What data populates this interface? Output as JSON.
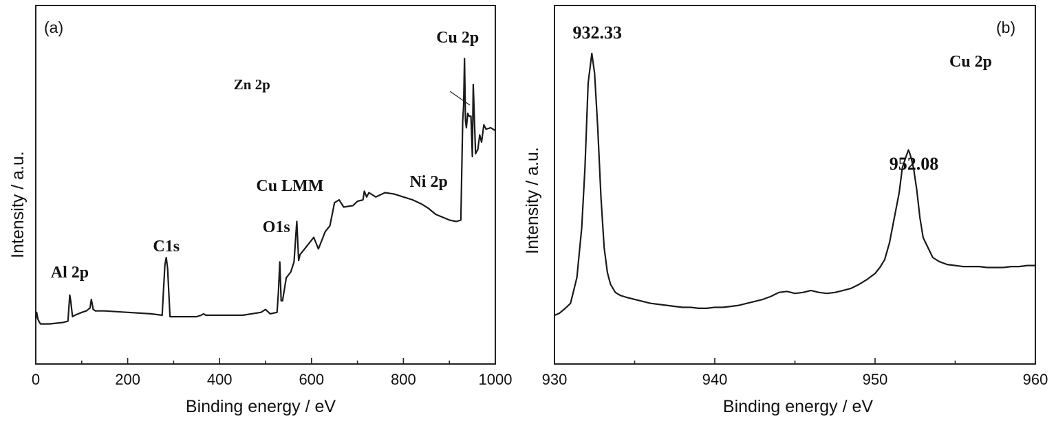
{
  "chart_data": [
    {
      "type": "line",
      "panel_label": "(a)",
      "xlabel": "Binding energy / eV",
      "ylabel": "Intensity / a.u.",
      "xlim": [
        0,
        1000
      ],
      "x_ticks": [
        0,
        200,
        400,
        600,
        800,
        1000
      ],
      "y_ticks_labeled": false,
      "grid": false,
      "annotations": [
        {
          "text": "Al 2p",
          "x": 74
        },
        {
          "text": "C1s",
          "x": 284
        },
        {
          "text": "O1s",
          "x": 531
        },
        {
          "text": "Cu LMM",
          "x": 568
        },
        {
          "text": "Ni 2p",
          "x": 855
        },
        {
          "text": "Zn 2p",
          "x": 1022
        },
        {
          "text": "Cu 2p",
          "x": 933
        }
      ],
      "series": [
        {
          "x": [
            0,
            2,
            5,
            10,
            30,
            60,
            70,
            74,
            76,
            80,
            85,
            100,
            110,
            118,
            121,
            125,
            130,
            150,
            200,
            250,
            275,
            281,
            284,
            287,
            292,
            300,
            350,
            360,
            365,
            370,
            400,
            450,
            490,
            500,
            510,
            525,
            528,
            531,
            534,
            537,
            545,
            555,
            562,
            566,
            568,
            572,
            575,
            590,
            605,
            615,
            620,
            630,
            640,
            645,
            650,
            660,
            670,
            690,
            700,
            712,
            715,
            720,
            725,
            740,
            760,
            780,
            800,
            820,
            840,
            855,
            870,
            900,
            915,
            925,
            929,
            931,
            933,
            935,
            937,
            940,
            943,
            947,
            950,
            952,
            954,
            957,
            962,
            966,
            970,
            975,
            980,
            990,
            1000
          ],
          "y": [
            7,
            12,
            7,
            4,
            4,
            5,
            6,
            24,
            20,
            9,
            10,
            12,
            13,
            15,
            21,
            14,
            13,
            13,
            12,
            11,
            10,
            45,
            50,
            42,
            9,
            9,
            9,
            10,
            11,
            10,
            10,
            10,
            12,
            14,
            11,
            12,
            26,
            47,
            20,
            20,
            36,
            40,
            47,
            66,
            75,
            48,
            52,
            58,
            64,
            56,
            60,
            68,
            72,
            80,
            88,
            90,
            85,
            86,
            89,
            90,
            96,
            92,
            95,
            92,
            95,
            94,
            92,
            90,
            87,
            84,
            80,
            76,
            75,
            76,
            145,
            155,
            188,
            145,
            140,
            150,
            148,
            148,
            120,
            170,
            150,
            122,
            125,
            135,
            130,
            142,
            139,
            140,
            138
          ]
        }
      ]
    },
    {
      "type": "line",
      "panel_label": "(b)",
      "xlabel": "Binding energy / eV",
      "ylabel": "Intensity / a.u.",
      "xlim": [
        930,
        960
      ],
      "x_ticks": [
        930,
        940,
        950,
        960
      ],
      "y_ticks_labeled": false,
      "grid": false,
      "title_annotation": "Cu 2p",
      "annotations": [
        {
          "text": "932.33",
          "x": 932.33
        },
        {
          "text": "952.08",
          "x": 952.08
        }
      ],
      "series": [
        {
          "x": [
            930.0,
            930.3,
            930.6,
            931.0,
            931.4,
            931.7,
            931.9,
            932.1,
            932.33,
            932.5,
            932.7,
            932.9,
            933.1,
            933.3,
            933.5,
            933.8,
            934.1,
            934.5,
            935.0,
            935.5,
            936.0,
            936.5,
            937.0,
            937.5,
            938.0,
            938.5,
            939.0,
            939.5,
            940.0,
            940.5,
            941.0,
            941.5,
            942.0,
            942.5,
            943.0,
            943.5,
            944.0,
            944.5,
            945.0,
            945.5,
            946.0,
            946.5,
            947.0,
            947.5,
            948.0,
            948.5,
            949.0,
            949.5,
            950.0,
            950.3,
            950.6,
            950.9,
            951.2,
            951.5,
            951.7,
            951.9,
            952.08,
            952.2,
            952.4,
            952.6,
            952.8,
            953.0,
            953.3,
            953.6,
            954.0,
            954.5,
            955.0,
            955.5,
            956.0,
            956.5,
            957.0,
            957.5,
            958.0,
            958.5,
            959.0,
            959.5,
            960.0
          ],
          "y": [
            2,
            4,
            8,
            14,
            40,
            90,
            150,
            235,
            265,
            245,
            190,
            120,
            70,
            45,
            33,
            25,
            22,
            20,
            18,
            16,
            14,
            13,
            12,
            11,
            10,
            10,
            9,
            9,
            10,
            10,
            11,
            12,
            14,
            16,
            18,
            21,
            25,
            26,
            24,
            25,
            27,
            25,
            24,
            25,
            27,
            29,
            33,
            38,
            44,
            50,
            58,
            75,
            100,
            125,
            150,
            160,
            168,
            163,
            150,
            128,
            100,
            80,
            70,
            60,
            56,
            53,
            52,
            51,
            51,
            51,
            50,
            50,
            50,
            51,
            51,
            52,
            52
          ]
        }
      ]
    }
  ]
}
